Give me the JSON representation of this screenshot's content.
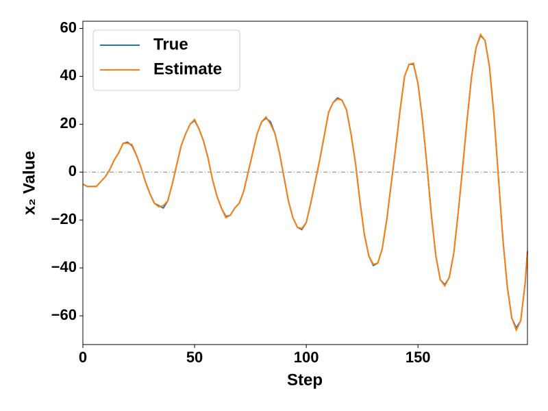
{
  "chart_data": {
    "type": "line",
    "xlabel": "Step",
    "ylabel": "x₂ Value",
    "x": [
      0,
      2,
      4,
      6,
      8,
      10,
      12,
      14,
      16,
      18,
      20,
      22,
      24,
      26,
      28,
      30,
      32,
      34,
      36,
      38,
      40,
      42,
      44,
      46,
      48,
      50,
      52,
      54,
      56,
      58,
      60,
      62,
      64,
      66,
      68,
      70,
      72,
      74,
      76,
      78,
      80,
      82,
      84,
      86,
      88,
      90,
      92,
      94,
      96,
      98,
      100,
      102,
      104,
      106,
      108,
      110,
      112,
      114,
      116,
      118,
      120,
      122,
      124,
      126,
      128,
      130,
      132,
      134,
      136,
      138,
      140,
      142,
      144,
      146,
      148,
      150,
      152,
      154,
      156,
      158,
      160,
      162,
      164,
      166,
      168,
      170,
      172,
      174,
      176,
      178,
      180,
      182,
      184,
      186,
      188,
      190,
      192,
      194,
      196,
      198,
      199
    ],
    "series": [
      {
        "name": "True",
        "color": "#1f77b4",
        "values": [
          -5,
          -6,
          -6,
          -6,
          -4,
          -2,
          1,
          5,
          8,
          12,
          12.5,
          11,
          7,
          2,
          -4,
          -9,
          -13,
          -14,
          -15,
          -12,
          -5,
          3,
          11,
          16,
          20,
          21.5,
          18,
          13,
          6,
          -3,
          -10,
          -15,
          -18.5,
          -18,
          -15,
          -13,
          -8,
          0,
          8,
          16,
          21,
          22.5,
          21,
          16,
          8,
          -2,
          -12,
          -19,
          -23,
          -24,
          -21,
          -13,
          -4,
          5,
          15,
          25,
          29,
          31,
          30,
          26,
          16,
          4,
          -12,
          -26,
          -35,
          -39,
          -38,
          -32,
          -20,
          -5,
          10,
          26,
          40,
          45,
          45,
          37,
          22,
          3,
          -18,
          -35,
          -45,
          -47,
          -44,
          -34,
          -17,
          2,
          22,
          40,
          52,
          57,
          55,
          44,
          24,
          -2,
          -28,
          -48,
          -61,
          -65,
          -62,
          -46,
          -33
        ]
      },
      {
        "name": "Estimate",
        "color": "#ff7f0e",
        "values": [
          -5,
          -6,
          -6,
          -6,
          -4,
          -2,
          1,
          5,
          8,
          12,
          12,
          11.5,
          7,
          2,
          -4,
          -9,
          -13,
          -14.5,
          -14,
          -12,
          -5,
          3,
          11,
          16,
          20,
          22,
          18,
          13,
          6,
          -3,
          -10,
          -15,
          -19,
          -18,
          -15,
          -13,
          -8,
          0,
          8,
          16,
          21,
          23,
          20,
          16,
          8,
          -2,
          -12,
          -19,
          -23,
          -23.5,
          -21,
          -13,
          -4,
          5,
          15,
          25,
          29,
          30.5,
          30,
          26,
          16,
          4,
          -12,
          -26,
          -35,
          -38.5,
          -38,
          -32,
          -20,
          -5,
          10,
          26,
          40,
          45,
          45.5,
          37,
          22,
          3,
          -18,
          -35,
          -45,
          -47.5,
          -44,
          -34,
          -17,
          2,
          22,
          40,
          52,
          57.5,
          55,
          44,
          24,
          -2,
          -28,
          -48,
          -61,
          -66,
          -62,
          -46,
          -33
        ]
      }
    ],
    "xlim": [
      0,
      199
    ],
    "ylim": [
      -72,
      63
    ],
    "xticks": [
      0,
      50,
      100,
      150
    ],
    "yticks": [
      {
        "value": -60,
        "label": "−60"
      },
      {
        "value": -40,
        "label": "−40"
      },
      {
        "value": -20,
        "label": "−20"
      },
      0,
      20,
      40,
      60
    ],
    "hline": 0,
    "hline_color": "#808080",
    "legend": "upper left"
  }
}
